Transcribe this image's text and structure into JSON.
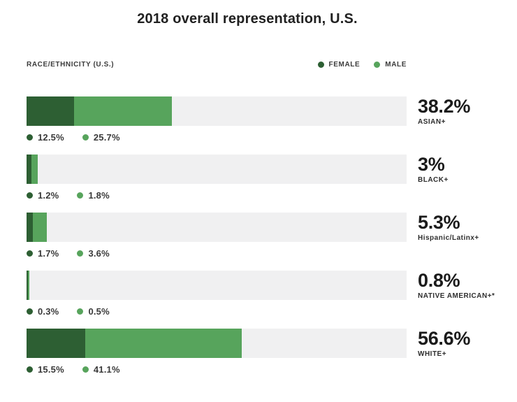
{
  "title": "2018 overall representation, U.S.",
  "header": {
    "axis_label": "RACE/ETHNICITY  (U.S.)"
  },
  "legend": {
    "female_label": "FEMALE",
    "male_label": "MALE"
  },
  "colors": {
    "female": "#2d5f33",
    "male": "#57a45c",
    "track": "#f0f0f1"
  },
  "chart_data": {
    "type": "bar",
    "orientation": "horizontal",
    "stacked": true,
    "title": "2018 overall representation, U.S.",
    "x_range": [
      0,
      100
    ],
    "categories": [
      "ASIAN+",
      "BLACK+",
      "Hispanic/Latinx+",
      "NATIVE AMERICAN+*",
      "WHITE+"
    ],
    "series": [
      {
        "name": "FEMALE",
        "values": [
          12.5,
          1.2,
          1.7,
          0.3,
          15.5
        ]
      },
      {
        "name": "MALE",
        "values": [
          25.7,
          1.8,
          3.6,
          0.5,
          41.1
        ]
      }
    ],
    "totals": [
      38.2,
      3,
      5.3,
      0.8,
      56.6
    ],
    "rows": [
      {
        "category": "ASIAN+",
        "female": 12.5,
        "male": 25.7,
        "female_label": "12.5%",
        "male_label": "25.7%",
        "total_label": "38.2%"
      },
      {
        "category": "BLACK+",
        "female": 1.2,
        "male": 1.8,
        "female_label": "1.2%",
        "male_label": "1.8%",
        "total_label": "3%"
      },
      {
        "category": "Hispanic/Latinx+",
        "female": 1.7,
        "male": 3.6,
        "female_label": "1.7%",
        "male_label": "3.6%",
        "total_label": "5.3%"
      },
      {
        "category": "NATIVE AMERICAN+*",
        "female": 0.3,
        "male": 0.5,
        "female_label": "0.3%",
        "male_label": "0.5%",
        "total_label": "0.8%"
      },
      {
        "category": "WHITE+",
        "female": 15.5,
        "male": 41.1,
        "female_label": "15.5%",
        "male_label": "41.1%",
        "total_label": "56.6%"
      }
    ]
  }
}
